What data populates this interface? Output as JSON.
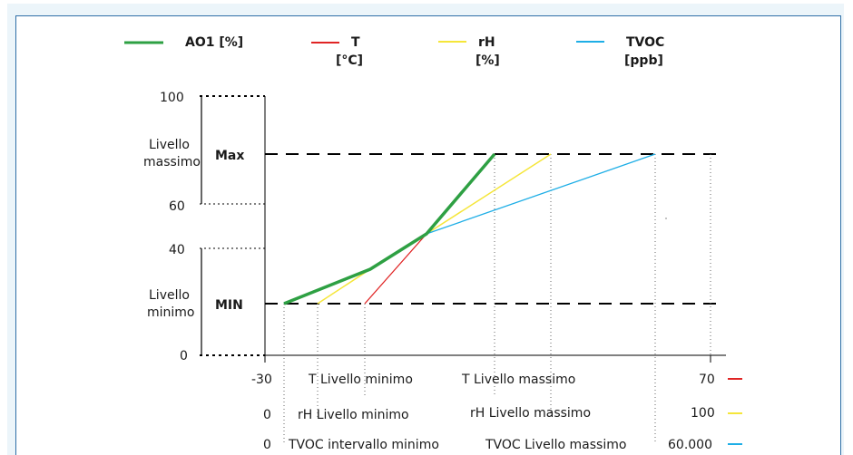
{
  "legend": {
    "ao1": {
      "label": "AO1 [%]",
      "color": "#2ea043"
    },
    "t": {
      "line1": "T",
      "line2": "[°C]",
      "color": "#e02424"
    },
    "rh": {
      "line1": "rH",
      "line2": "[%]",
      "color": "#f5e63a"
    },
    "tvoc": {
      "line1": "TVOC",
      "line2": "[ppb]",
      "color": "#1eaee6"
    }
  },
  "yaxis": {
    "tick_100": "100",
    "tick_60": "60",
    "tick_40": "40",
    "tick_0": "0",
    "max_group_label_1": "Livello",
    "max_group_label_2": "massimo",
    "min_group_label_1": "Livello",
    "min_group_label_2": "minimo",
    "max_tag": "Max",
    "min_tag": "MIN"
  },
  "xaxis": {
    "row_t": {
      "start": "-30",
      "min_label": "T Livello minimo",
      "max_label": "T Livello massimo",
      "end": "70",
      "color": "#e02424"
    },
    "row_rh": {
      "start": "0",
      "min_label": "rH Livello minimo",
      "max_label": "rH Livello massimo",
      "end": "100",
      "color": "#f5e63a"
    },
    "row_tvoc": {
      "start": "0",
      "min_label": "TVOC intervallo minimo",
      "max_label": "TVOC Livello massimo",
      "end": "60.000",
      "color": "#1eaee6"
    }
  }
}
